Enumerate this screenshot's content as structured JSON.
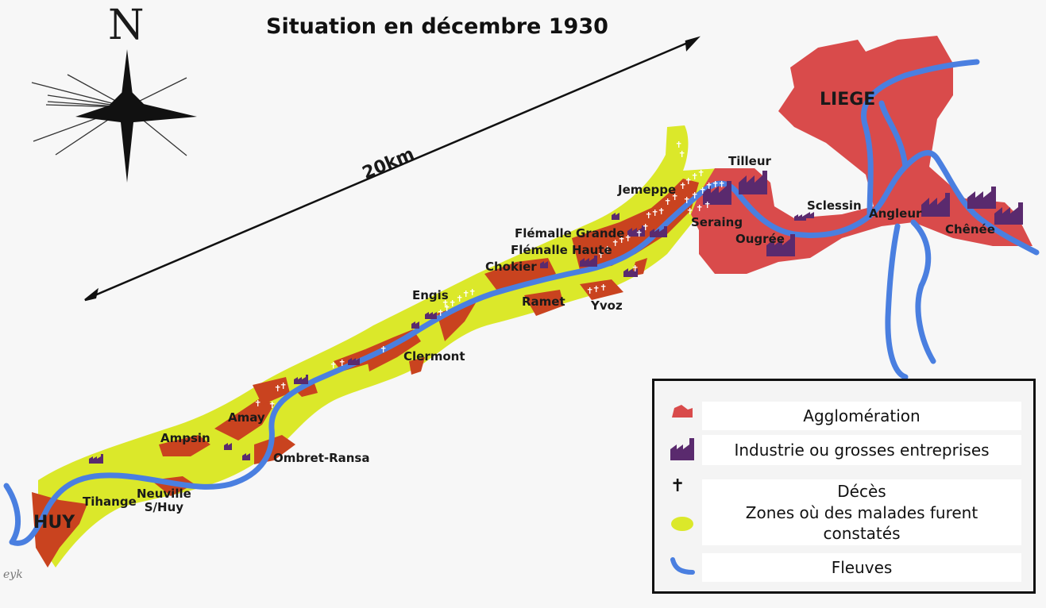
{
  "title": "Situation en décembre 1930",
  "compass": {
    "north_label": "N",
    "icon": "compass-rose-icon"
  },
  "scale": {
    "label": "20km"
  },
  "places": {
    "liege": "LIEGE",
    "tilleur": "Tilleur",
    "jemeppe": "Jemeppe",
    "seraing": "Seraing",
    "sclessin": "Sclessin",
    "angleur": "Angleur",
    "chenee": "Chênée",
    "ougree": "Ougrée",
    "flemalle_grande": "Flémalle Grande",
    "flemalle_haute": "Flémalle Haute",
    "chokier": "Chokier",
    "engis": "Engis",
    "ramet": "Ramet",
    "yvoz": "Yvoz",
    "clermont": "Clermont",
    "amay": "Amay",
    "ampsin": "Ampsin",
    "ombret": "Ombret-Ransa",
    "tihange": "Tihange",
    "neuville_1": "Neuville",
    "neuville_2": "S/Huy",
    "huy": "HUY"
  },
  "legend": {
    "items": [
      {
        "label": "Agglomération",
        "icon": "agglomeration-swatch-icon",
        "color": "#d94b4b"
      },
      {
        "label": "Industrie ou grosses entreprises",
        "icon": "factory-icon",
        "color": "#5a2a6e"
      },
      {
        "label": "Décès",
        "icon": "cross-icon",
        "color": "#111111"
      },
      {
        "label": "Zones où des malades furent",
        "label2": "constatés",
        "icon": "sick-zone-swatch-icon",
        "color": "#dbe82a"
      },
      {
        "label": "Fleuves",
        "icon": "river-line-icon",
        "color": "#4a7fe0"
      }
    ]
  },
  "signature": "eyk",
  "colors": {
    "agglomeration": "#d94b4b",
    "zone": "#dbe82a",
    "river": "#4a7fe0",
    "factory": "#5a2a6e",
    "cluster": "#c9431f"
  }
}
